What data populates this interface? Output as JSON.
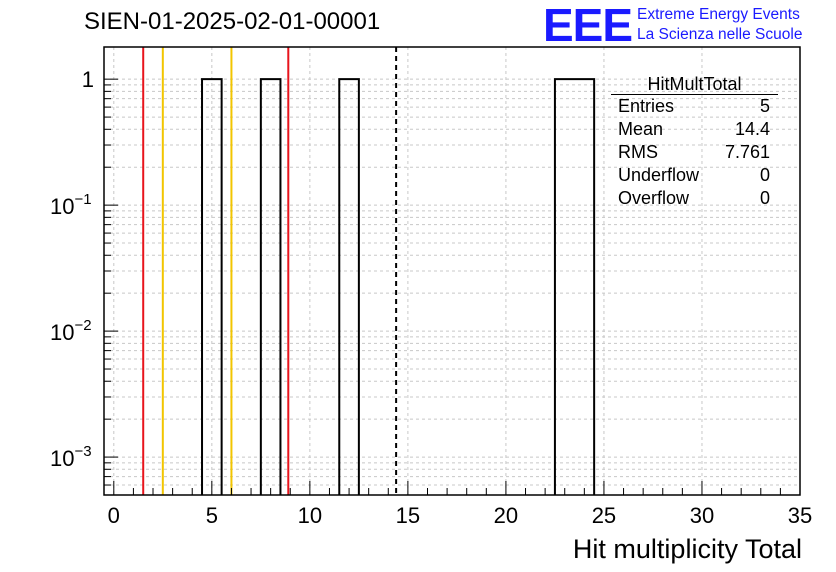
{
  "title": "SIEN-01-2025-02-01-00001",
  "logo": {
    "text": "EEE",
    "line1": "Extreme Energy Events",
    "line2": "La Scienza nelle Scuole",
    "color": "#1a1aff"
  },
  "stats": {
    "name": "HitMultTotal",
    "rows": [
      {
        "label": "Entries",
        "value": "5"
      },
      {
        "label": "Mean",
        "value": "14.4"
      },
      {
        "label": "RMS",
        "value": "7.761"
      },
      {
        "label": "Underflow",
        "value": "0"
      },
      {
        "label": "Overflow",
        "value": "0"
      }
    ]
  },
  "chart_data": {
    "type": "bar",
    "title": "SIEN-01-2025-02-01-00001",
    "xlabel": "Hit multiplicity Total",
    "ylabel": "",
    "xlim": [
      -0.5,
      35
    ],
    "ylim": [
      0.0005,
      1.8
    ],
    "yscale": "log",
    "grid": true,
    "xticks": [
      0,
      5,
      10,
      15,
      20,
      25,
      30,
      35
    ],
    "yticks": [
      {
        "value": 0.001,
        "base": "10",
        "exp": "−3"
      },
      {
        "value": 0.01,
        "base": "10",
        "exp": "−2"
      },
      {
        "value": 0.1,
        "base": "10",
        "exp": "−1"
      },
      {
        "value": 1,
        "base": "1",
        "exp": ""
      }
    ],
    "bars": [
      {
        "x0": 4.5,
        "x1": 5.5,
        "value": 1
      },
      {
        "x0": 7.5,
        "x1": 8.5,
        "value": 1
      },
      {
        "x0": 11.5,
        "x1": 12.5,
        "value": 1
      },
      {
        "x0": 22.5,
        "x1": 24.5,
        "value": 1
      }
    ],
    "vlines": [
      {
        "x": 1.5,
        "color": "#e8141c",
        "style": "solid"
      },
      {
        "x": 2.5,
        "color": "#f2c500",
        "style": "solid"
      },
      {
        "x": 6.0,
        "color": "#f2c500",
        "style": "solid"
      },
      {
        "x": 8.9,
        "color": "#e8141c",
        "style": "solid"
      },
      {
        "x": 14.4,
        "color": "#000000",
        "style": "dashed"
      }
    ]
  }
}
